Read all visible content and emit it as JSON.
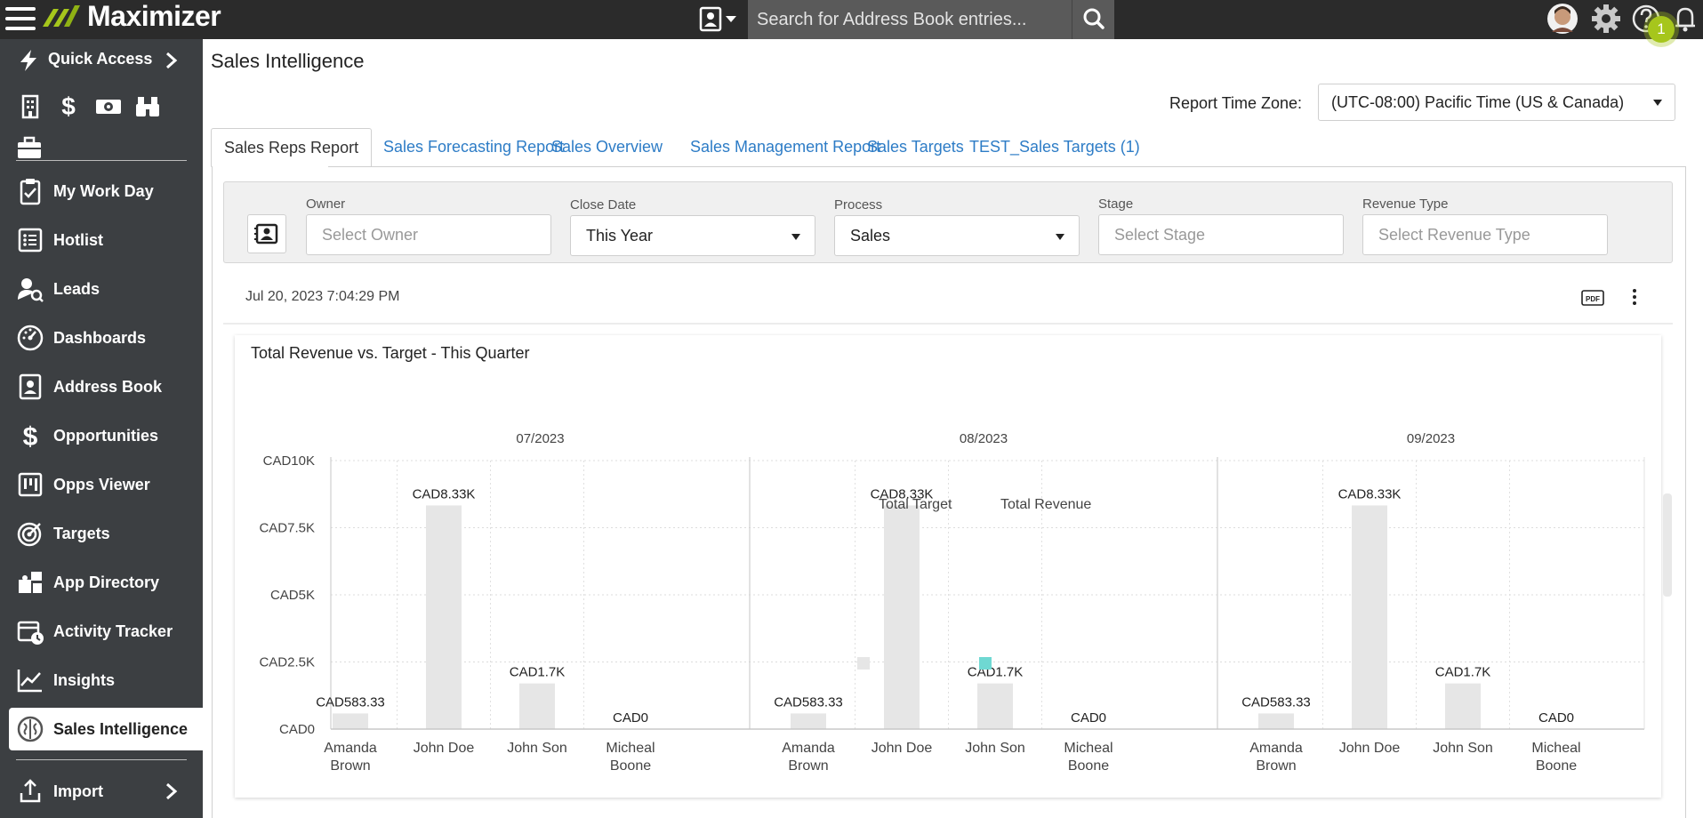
{
  "app": {
    "brand": "Maximizer",
    "search_placeholder": "Search for Address Book entries...",
    "notification_count": "1",
    "icons": [
      "hamburger-icon",
      "address-book-icon",
      "search-icon",
      "avatar",
      "gear-icon",
      "help-icon",
      "bell-icon"
    ]
  },
  "sidebar": {
    "quick_access": "Quick Access",
    "items": [
      {
        "label": "My Work Day",
        "icon": "clipboard-check-icon"
      },
      {
        "label": "Hotlist",
        "icon": "list-icon"
      },
      {
        "label": "Leads",
        "icon": "lead-search-icon"
      },
      {
        "label": "Dashboards",
        "icon": "gauge-icon"
      },
      {
        "label": "Address Book",
        "icon": "address-book-icon"
      },
      {
        "label": "Opportunities",
        "icon": "dollar-icon"
      },
      {
        "label": "Opps Viewer",
        "icon": "kanban-icon"
      },
      {
        "label": "Targets",
        "icon": "target-icon"
      },
      {
        "label": "App Directory",
        "icon": "puzzle-icon"
      },
      {
        "label": "Activity Tracker",
        "icon": "calendar-clock-icon"
      },
      {
        "label": "Insights",
        "icon": "line-chart-icon"
      },
      {
        "label": "Sales Intelligence",
        "icon": "brain-icon"
      }
    ],
    "import": "Import"
  },
  "page": {
    "title": "Sales Intelligence",
    "tz_label": "Report Time Zone:",
    "tz_value": "(UTC-08:00) Pacific Time (US & Canada)",
    "tabs": [
      "Sales Reps Report",
      "Sales Forecasting Report",
      "Sales Overview",
      "Sales Management Report",
      "Sales Targets",
      "TEST_Sales Targets (1)"
    ],
    "active_tab": "Sales Reps Report"
  },
  "filters": {
    "owner": {
      "label": "Owner",
      "placeholder": "Select Owner"
    },
    "close_date": {
      "label": "Close Date",
      "value": "This Year"
    },
    "process": {
      "label": "Process",
      "value": "Sales"
    },
    "stage": {
      "label": "Stage",
      "placeholder": "Select Stage"
    },
    "revenue_type": {
      "label": "Revenue Type",
      "placeholder": "Select Revenue Type"
    }
  },
  "report": {
    "timestamp": "Jul 20, 2023 7:04:29 PM",
    "pdf_label": "PDF"
  },
  "chart_data": {
    "type": "bar",
    "title": "Total Revenue vs. Target - This Quarter",
    "panels": [
      "07/2023",
      "08/2023",
      "09/2023"
    ],
    "categories": [
      "Amanda Brown",
      "John Doe",
      "John Son",
      "Micheal Boone"
    ],
    "yticks": [
      "CAD0",
      "CAD2.5K",
      "CAD5K",
      "CAD7.5K",
      "CAD10K"
    ],
    "ylim": [
      0,
      10000
    ],
    "series": [
      {
        "name": "Total Target",
        "color": "#e6e6e6",
        "values": [
          [
            583.33,
            8330,
            1700,
            0
          ],
          [
            583.33,
            8330,
            1700,
            0
          ],
          [
            583.33,
            8330,
            1700,
            0
          ]
        ],
        "labels": [
          "CAD583.33",
          "CAD8.33K",
          "CAD1.7K",
          "CAD0"
        ]
      },
      {
        "name": "Total Revenue",
        "color": "#6fd8d2",
        "values": [
          [
            0,
            0,
            0,
            0
          ],
          [
            0,
            0,
            0,
            0
          ],
          [
            0,
            0,
            0,
            0
          ]
        ]
      }
    ],
    "grid": true,
    "legend": "bottom"
  }
}
